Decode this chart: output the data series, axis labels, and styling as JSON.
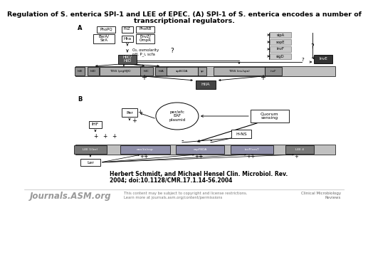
{
  "title_line1": "Regulation of S. enterica SPI-1 and LEE of EPEC. (A) SPI-1 of S. enterica encodes a number of",
  "title_line2": "transcriptional regulators.",
  "bg_color": "#ffffff",
  "citation_line1": "Herbert Schmidt, and Michael Hensel Clin. Microbiol. Rev.",
  "citation_line2": "2004; doi:10.1128/CMR.17.1.14-56.2004",
  "footer_journal": "Journals.ASM.org",
  "footer_copyright": "This content may be subject to copyright and license restrictions.\nLearn more at journals.asm.org/content/permissions",
  "footer_right": "Clinical Microbiology\nReviews"
}
